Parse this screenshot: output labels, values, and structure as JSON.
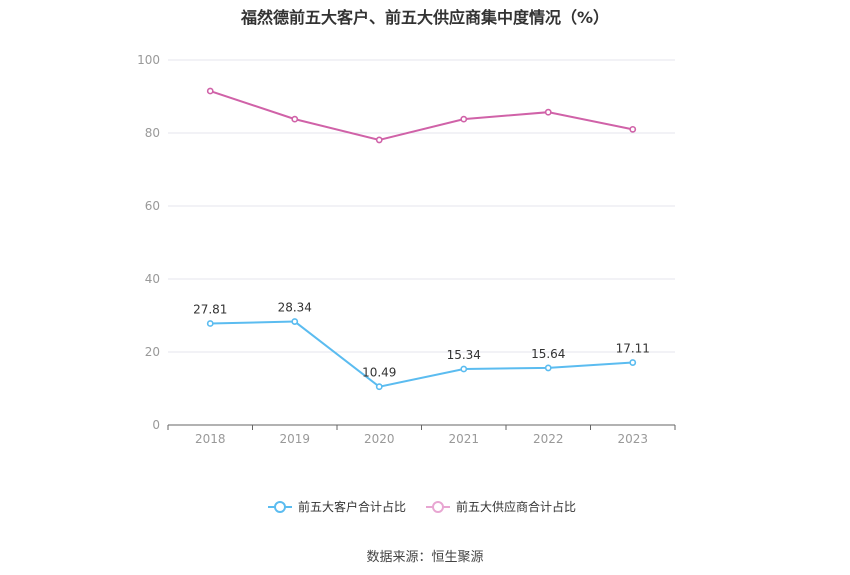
{
  "chart_data": {
    "type": "line",
    "title": "福然德前五大客户、前五大供应商集中度情况（%）",
    "categories": [
      "2018",
      "2019",
      "2020",
      "2021",
      "2022",
      "2023"
    ],
    "series": [
      {
        "name": "前五大客户合计占比",
        "values": [
          27.81,
          28.34,
          10.49,
          15.34,
          15.64,
          17.11
        ],
        "labels": [
          "27.81",
          "28.34",
          "10.49",
          "15.34",
          "15.64",
          "17.11"
        ],
        "color": "#5bbcf0",
        "show_labels": true
      },
      {
        "name": "前五大供应商合计占比",
        "values": [
          91.5,
          83.8,
          78.1,
          83.8,
          85.7,
          81.0
        ],
        "color": "#d062a8",
        "show_labels": false
      }
    ],
    "ylim": [
      0,
      100
    ],
    "yticks": [
      "0",
      "20",
      "40",
      "60",
      "80",
      "100"
    ],
    "grid": true,
    "legend": "bottom"
  },
  "source": "数据来源：恒生聚源"
}
